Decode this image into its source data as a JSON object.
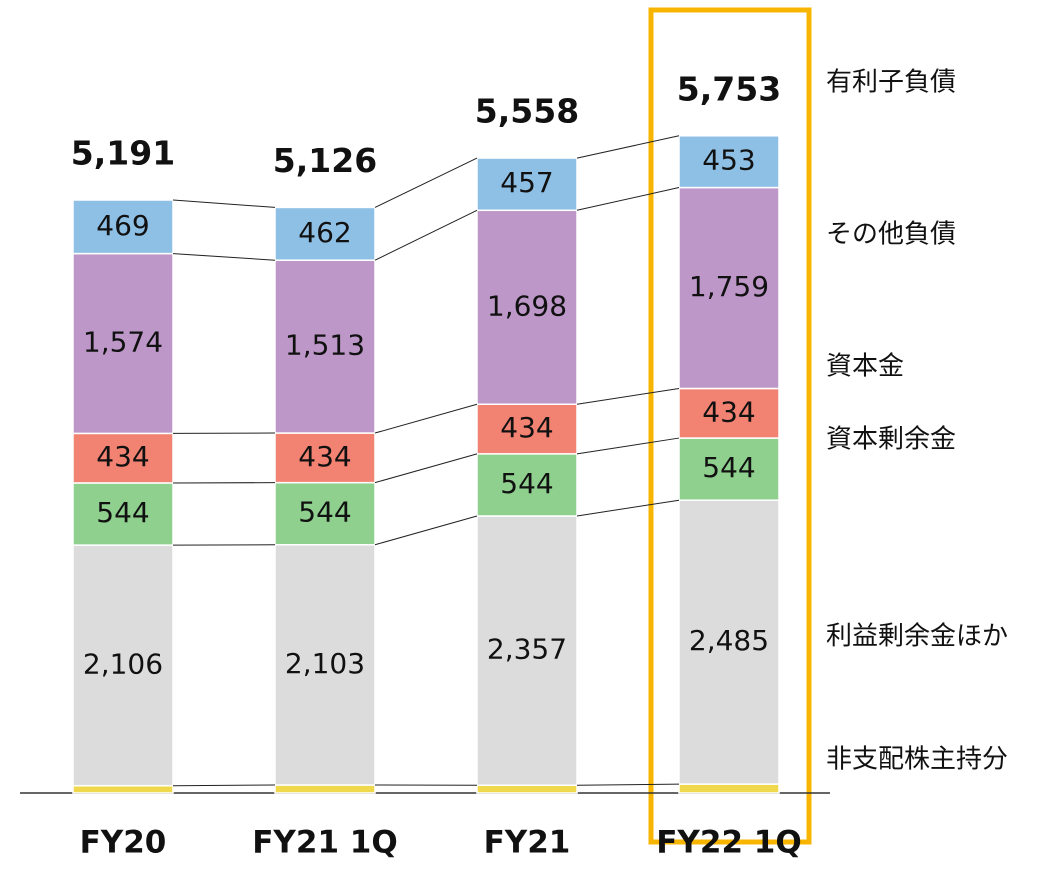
{
  "chart_data": {
    "type": "stacked_bar",
    "categories": [
      "FY20",
      "FY21 1Q",
      "FY21",
      "FY22 1Q"
    ],
    "series": [
      {
        "name": "非支配株主持分",
        "color": "#f0d84c",
        "values": [
          64,
          70,
          68,
          78
        ]
      },
      {
        "name": "利益剰余金ほか",
        "color": "#dcdcdc",
        "values": [
          2106,
          2103,
          2357,
          2485
        ],
        "value_labels": [
          "2,106",
          "2,103",
          "2,357",
          "2,485"
        ]
      },
      {
        "name": "資本剰余金",
        "color": "#8fd08f",
        "values": [
          544,
          544,
          544,
          544
        ]
      },
      {
        "name": "資本金",
        "color": "#f28272",
        "values": [
          434,
          434,
          434,
          434
        ]
      },
      {
        "name": "その他負債",
        "color": "#bc97c8",
        "values": [
          1574,
          1513,
          1698,
          1759
        ],
        "value_labels": [
          "1,574",
          "1,513",
          "1,698",
          "1,759"
        ]
      },
      {
        "name": "有利子負債",
        "color": "#8ec0e6",
        "values": [
          469,
          462,
          457,
          453
        ]
      }
    ],
    "totals": [
      5191,
      5126,
      5558,
      5753
    ],
    "total_labels": [
      "5,191",
      "5,126",
      "5,558",
      "5,753"
    ]
  }
}
